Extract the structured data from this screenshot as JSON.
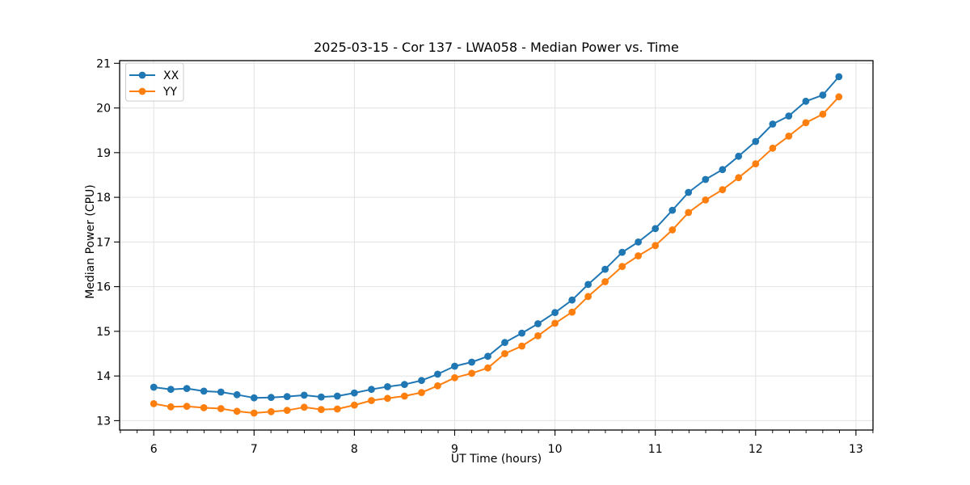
{
  "chart_data": {
    "type": "line",
    "title": "2025-03-15 - Cor 137 - LWA058 - Median Power vs. Time",
    "xlabel": "UT Time (hours)",
    "ylabel": "Median Power (CPU)",
    "xlim": [
      5.66,
      13.17
    ],
    "ylim": [
      12.79,
      21.06
    ],
    "xticks": [
      6,
      7,
      8,
      9,
      10,
      11,
      12,
      13
    ],
    "yticks": [
      13,
      14,
      15,
      16,
      17,
      18,
      19,
      20,
      21
    ],
    "x_minor_tick_step": 0.1667,
    "grid": true,
    "grid_color": "#e2e2e2",
    "spine_color": "#000000",
    "tick_color": "#000000",
    "background_color": "#ffffff",
    "legend_position": "upper left",
    "x": [
      6.0,
      6.17,
      6.33,
      6.5,
      6.67,
      6.83,
      7.0,
      7.17,
      7.33,
      7.5,
      7.67,
      7.83,
      8.0,
      8.17,
      8.33,
      8.5,
      8.67,
      8.83,
      9.0,
      9.17,
      9.33,
      9.5,
      9.67,
      9.83,
      10.0,
      10.17,
      10.33,
      10.5,
      10.67,
      10.83,
      11.0,
      11.17,
      11.33,
      11.5,
      11.67,
      11.83,
      12.0,
      12.17,
      12.33,
      12.5,
      12.67,
      12.83
    ],
    "series": [
      {
        "name": "XX",
        "color": "#1f77b4",
        "values": [
          13.75,
          13.7,
          13.72,
          13.66,
          13.64,
          13.58,
          13.51,
          13.52,
          13.54,
          13.57,
          13.53,
          13.55,
          13.62,
          13.7,
          13.76,
          13.81,
          13.9,
          14.04,
          14.22,
          14.31,
          14.44,
          14.75,
          14.96,
          15.17,
          15.42,
          15.7,
          16.05,
          16.39,
          16.77,
          17.0,
          17.3,
          17.71,
          18.11,
          18.4,
          18.62,
          18.92,
          19.25,
          19.64,
          19.82,
          20.15,
          20.29,
          20.7
        ]
      },
      {
        "name": "YY",
        "color": "#ff7f0e",
        "values": [
          13.38,
          13.31,
          13.32,
          13.29,
          13.27,
          13.21,
          13.17,
          13.2,
          13.23,
          13.3,
          13.25,
          13.26,
          13.35,
          13.45,
          13.5,
          13.55,
          13.63,
          13.78,
          13.96,
          14.06,
          14.18,
          14.5,
          14.67,
          14.9,
          15.18,
          15.43,
          15.78,
          16.11,
          16.45,
          16.69,
          16.92,
          17.27,
          17.66,
          17.94,
          18.17,
          18.44,
          18.75,
          19.1,
          19.37,
          19.67,
          19.86,
          20.25
        ]
      }
    ]
  }
}
